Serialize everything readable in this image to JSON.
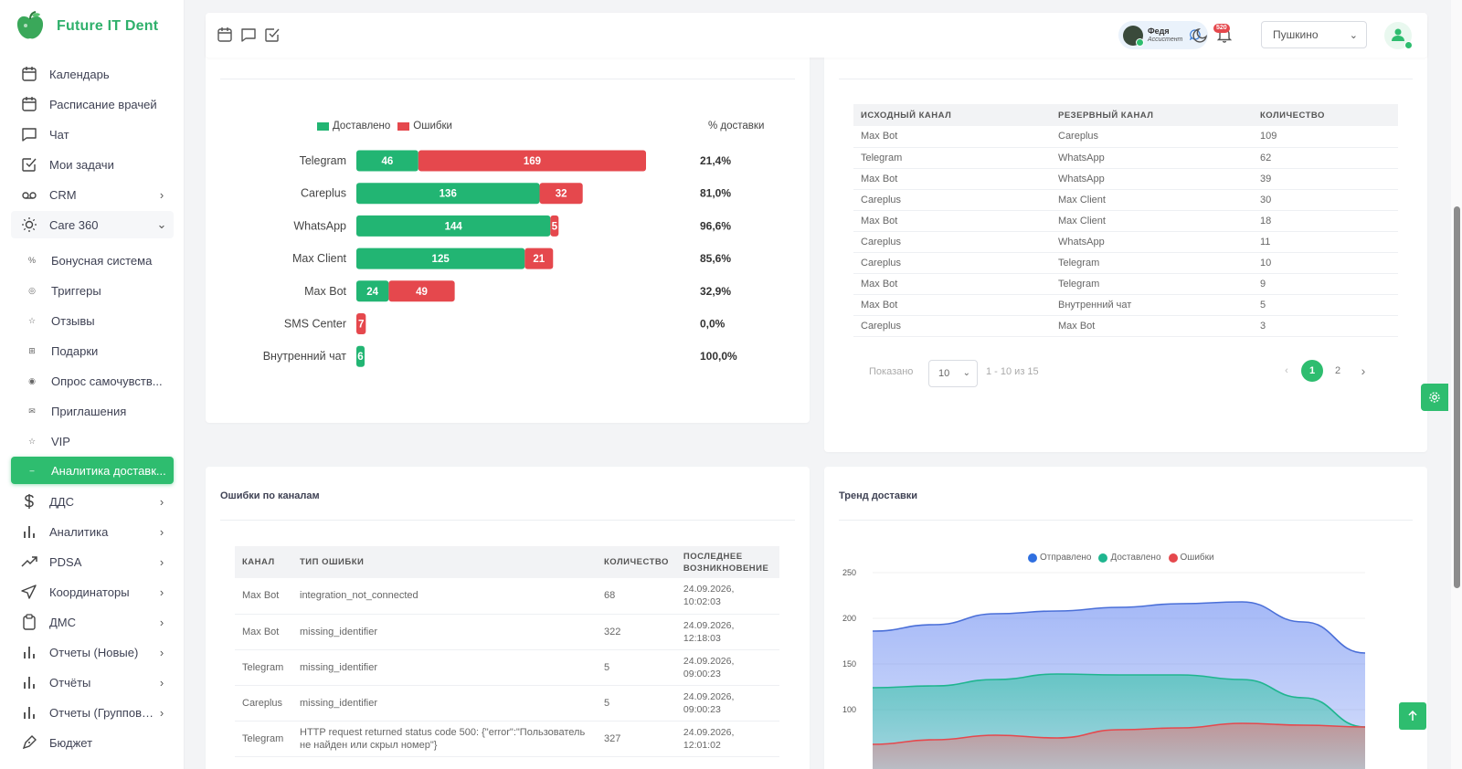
{
  "brand": {
    "name": "Future IT Dent"
  },
  "sidebar": {
    "items": [
      {
        "label": "Календарь",
        "icon": "calendar-icon"
      },
      {
        "label": "Расписание врачей",
        "icon": "calendar-icon"
      },
      {
        "label": "Чат",
        "icon": "chat-icon"
      },
      {
        "label": "Мои задачи",
        "icon": "check-square-icon"
      },
      {
        "label": "CRM",
        "icon": "voicemail-icon"
      },
      {
        "label": "Care 360",
        "icon": "sun-icon"
      },
      {
        "label": "Бонусная система",
        "icon": "percent-icon"
      },
      {
        "label": "Триггеры",
        "icon": "target-icon"
      },
      {
        "label": "Отзывы",
        "icon": "star-icon"
      },
      {
        "label": "Подарки",
        "icon": "gift-icon"
      },
      {
        "label": "Опрос самочувств...",
        "icon": "circle-icon"
      },
      {
        "label": "Приглашения",
        "icon": "mail-icon"
      },
      {
        "label": "VIP",
        "icon": "star-icon"
      },
      {
        "label": "Аналитика доставк...",
        "icon": "dash-icon"
      },
      {
        "label": "ДДС",
        "icon": "dollar-icon"
      },
      {
        "label": "Аналитика",
        "icon": "bar-chart-icon"
      },
      {
        "label": "PDSA",
        "icon": "trend-icon"
      },
      {
        "label": "Координаторы",
        "icon": "send-icon"
      },
      {
        "label": "ДМС",
        "icon": "clipboard-icon"
      },
      {
        "label": "Отчеты (Новые)",
        "icon": "bar-chart-icon"
      },
      {
        "label": "Отчёты",
        "icon": "bar-chart-icon"
      },
      {
        "label": "Отчеты (Групповые)",
        "icon": "bar-chart-icon"
      },
      {
        "label": "Бюджет",
        "icon": "pen-icon"
      }
    ]
  },
  "topbar": {
    "assistant": {
      "name": "Федя",
      "role": "Ассистент"
    },
    "notifications_count": "520",
    "branch": "Пушкино"
  },
  "delivery_chart": {
    "legend_delivered": "Доставлено",
    "legend_errors": "Ошибки",
    "pct_header": "% доставки",
    "colors": {
      "delivered": "#22b573",
      "errors": "#e5484d"
    }
  },
  "chart_data": [
    {
      "type": "bar",
      "stacked": true,
      "orientation": "horizontal",
      "categories": [
        "Telegram",
        "Careplus",
        "WhatsApp",
        "Max Client",
        "Max Bot",
        "SMS Center",
        "Внутренний чат"
      ],
      "series": [
        {
          "name": "Доставлено",
          "values": [
            46,
            136,
            144,
            125,
            24,
            0,
            6
          ]
        },
        {
          "name": "Ошибки",
          "values": [
            169,
            32,
            5,
            21,
            49,
            7,
            0
          ]
        }
      ],
      "delivery_pct": [
        "21,4%",
        "81,0%",
        "96,6%",
        "85,6%",
        "32,9%",
        "0,0%",
        "100,0%"
      ],
      "legend": "top"
    },
    {
      "type": "area",
      "title": "Тренд доставки",
      "series": [
        {
          "name": "Отправлено",
          "values": [
            186,
            193,
            205,
            208,
            212,
            216,
            218,
            196,
            162
          ]
        },
        {
          "name": "Доставлено",
          "values": [
            124,
            126,
            133,
            139,
            138,
            138,
            133,
            113,
            81
          ]
        },
        {
          "name": "Ошибки",
          "values": [
            62,
            67,
            72,
            69,
            78,
            80,
            85,
            83,
            81
          ]
        }
      ],
      "y_ticks": [
        "250",
        "200",
        "150",
        "100"
      ],
      "ylim": [
        75,
        255
      ],
      "legend": "top",
      "colors": {
        "sent": "#4a6fd8",
        "delivered": "#1fb58f",
        "errors": "#e5484d"
      }
    }
  ],
  "fallback_table": {
    "headers": [
      "ИСХОДНЫЙ КАНАЛ",
      "РЕЗЕРВНЫЙ КАНАЛ",
      "КОЛИЧЕСТВО"
    ],
    "rows": [
      [
        "Max Bot",
        "Careplus",
        "109"
      ],
      [
        "Telegram",
        "WhatsApp",
        "62"
      ],
      [
        "Max Bot",
        "WhatsApp",
        "39"
      ],
      [
        "Careplus",
        "Max Client",
        "30"
      ],
      [
        "Max Bot",
        "Max Client",
        "18"
      ],
      [
        "Careplus",
        "WhatsApp",
        "11"
      ],
      [
        "Careplus",
        "Telegram",
        "10"
      ],
      [
        "Max Bot",
        "Telegram",
        "9"
      ],
      [
        "Max Bot",
        "Внутренний чат",
        "5"
      ],
      [
        "Careplus",
        "Max Bot",
        "3"
      ]
    ],
    "shown_label": "Показано",
    "page_size": "10",
    "range_text": "1 - 10 из 15",
    "pages": [
      "1",
      "2"
    ],
    "current_page": "1"
  },
  "errors_card": {
    "title": "Ошибки по каналам",
    "headers": [
      "КАНАЛ",
      "ТИП ОШИБКИ",
      "КОЛИЧЕСТВО",
      "ПОСЛЕДНЕЕ ВОЗНИКНОВЕНИЕ"
    ],
    "rows": [
      [
        "Max Bot",
        "integration_not_connected",
        "68",
        "24.09.2026, 10:02:03"
      ],
      [
        "Max Bot",
        "missing_identifier",
        "322",
        "24.09.2026, 12:18:03"
      ],
      [
        "Telegram",
        "missing_identifier",
        "5",
        "24.09.2026, 09:00:23"
      ],
      [
        "Careplus",
        "missing_identifier",
        "5",
        "24.09.2026, 09:00:23"
      ],
      [
        "Telegram",
        "HTTP request returned status code 500: {\"error\":\"Пользователь не найден или скрыл номер\"}",
        "327",
        "24.09.2026, 12:01:02"
      ]
    ]
  },
  "trend_card": {
    "title": "Тренд доставки",
    "legend": [
      "Отправлено",
      "Доставлено",
      "Ошибки"
    ]
  }
}
